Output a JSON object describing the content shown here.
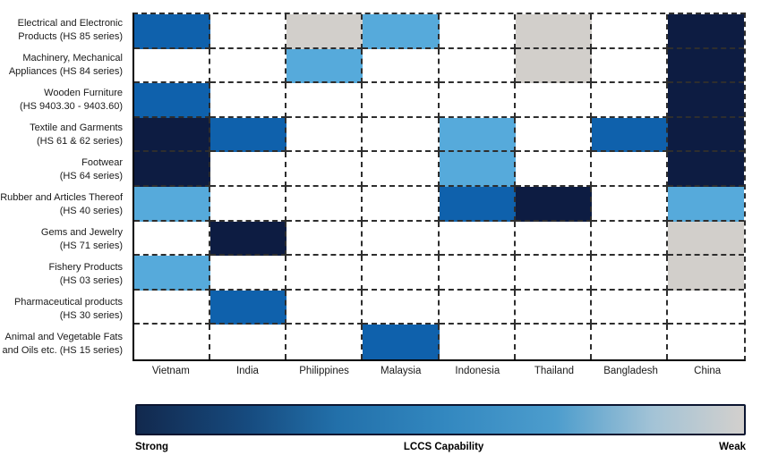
{
  "chart_data": {
    "type": "heatmap",
    "title": "",
    "legend": {
      "title": "LCCS Capability",
      "left_label": "Strong",
      "right_label": "Weak"
    },
    "columns": [
      "Vietnam",
      "India",
      "Philippines",
      "Malaysia",
      "Indonesia",
      "Thailand",
      "Bangladesh",
      "China"
    ],
    "rows": [
      {
        "label_lines": [
          "Electrical and Electronic",
          "Products (HS 85 series)"
        ]
      },
      {
        "label_lines": [
          "Machinery, Mechanical",
          "Appliances (HS 84 series)"
        ]
      },
      {
        "label_lines": [
          "Wooden Furniture",
          "(HS 9403.30 - 9403.60)"
        ]
      },
      {
        "label_lines": [
          "Textile and Garments",
          "(HS 61 & 62 series)"
        ]
      },
      {
        "label_lines": [
          "Footwear",
          "(HS 64 series)"
        ]
      },
      {
        "label_lines": [
          "Rubber and Articles Thereof",
          "(HS 40 series)"
        ]
      },
      {
        "label_lines": [
          "Gems and Jewelry",
          "(HS 71 series)"
        ]
      },
      {
        "label_lines": [
          "Fishery Products",
          "(HS 03 series)"
        ]
      },
      {
        "label_lines": [
          "Pharmaceutical products",
          "(HS 30 series)"
        ]
      },
      {
        "label_lines": [
          "Animal and Vegetable Fats",
          "and Oils etc. (HS 15 series)"
        ]
      }
    ],
    "levels_legend": "strong = dark navy, moderate = medium blue, fair = light blue, weak = light gray, none = white (no capability shown)",
    "cells": [
      [
        "moderate",
        "none",
        "weak",
        "fair",
        "none",
        "weak",
        "none",
        "strong"
      ],
      [
        "none",
        "none",
        "fair",
        "none",
        "none",
        "weak",
        "none",
        "strong"
      ],
      [
        "moderate",
        "none",
        "none",
        "none",
        "none",
        "none",
        "none",
        "strong"
      ],
      [
        "strong",
        "moderate",
        "none",
        "none",
        "fair",
        "none",
        "moderate",
        "strong"
      ],
      [
        "strong",
        "none",
        "none",
        "none",
        "fair",
        "none",
        "none",
        "strong"
      ],
      [
        "fair",
        "none",
        "none",
        "none",
        "moderate",
        "strong",
        "none",
        "fair"
      ],
      [
        "none",
        "strong",
        "none",
        "none",
        "none",
        "none",
        "none",
        "weak"
      ],
      [
        "fair",
        "none",
        "none",
        "none",
        "none",
        "none",
        "none",
        "weak"
      ],
      [
        "none",
        "moderate",
        "none",
        "none",
        "none",
        "none",
        "none",
        "none"
      ],
      [
        "none",
        "none",
        "none",
        "moderate",
        "none",
        "none",
        "none",
        "none"
      ]
    ],
    "colors": {
      "strong": "#0d1c42",
      "moderate": "#0f61ac",
      "fair": "#56aadb",
      "weak": "#d2cfcb",
      "none": "#ffffff"
    },
    "layout": {
      "grid_on": true,
      "gridline_style": "dashed",
      "legend_position": "bottom"
    }
  }
}
